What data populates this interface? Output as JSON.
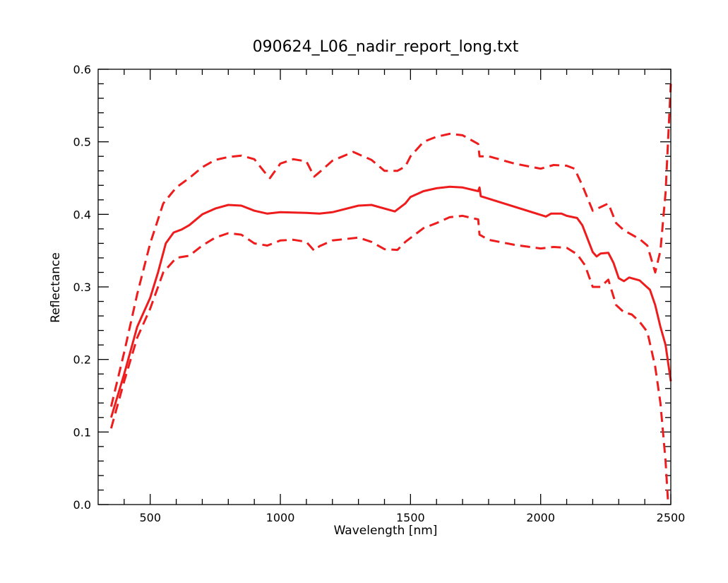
{
  "chart_data": {
    "type": "line",
    "title": "090624_L06_nadir_report_long.txt",
    "xlabel": "Wavelength [nm]",
    "ylabel": "Reflectance",
    "xlim": [
      300,
      2500
    ],
    "ylim": [
      0.0,
      0.6
    ],
    "xticks": [
      500,
      1000,
      1500,
      2000,
      2500
    ],
    "xtick_labels": [
      "500",
      "1000",
      "1500",
      "2000",
      "2500"
    ],
    "yticks": [
      0.0,
      0.1,
      0.2,
      0.3,
      0.4,
      0.5,
      0.6
    ],
    "ytick_labels": [
      "0.0",
      "0.1",
      "0.2",
      "0.3",
      "0.4",
      "0.5",
      "0.6"
    ],
    "grid": false,
    "series": [
      {
        "style": "solid",
        "color": "#ee1c1c",
        "points": [
          [
            350,
            0.12
          ],
          [
            400,
            0.18
          ],
          [
            450,
            0.245
          ],
          [
            500,
            0.285
          ],
          [
            530,
            0.32
          ],
          [
            560,
            0.36
          ],
          [
            590,
            0.375
          ],
          [
            620,
            0.379
          ],
          [
            650,
            0.385
          ],
          [
            700,
            0.4
          ],
          [
            750,
            0.408
          ],
          [
            800,
            0.413
          ],
          [
            850,
            0.412
          ],
          [
            900,
            0.405
          ],
          [
            950,
            0.401
          ],
          [
            1000,
            0.403
          ],
          [
            1100,
            0.402
          ],
          [
            1150,
            0.401
          ],
          [
            1200,
            0.403
          ],
          [
            1300,
            0.412
          ],
          [
            1350,
            0.413
          ],
          [
            1440,
            0.404
          ],
          [
            1480,
            0.415
          ],
          [
            1500,
            0.424
          ],
          [
            1550,
            0.432
          ],
          [
            1600,
            0.436
          ],
          [
            1650,
            0.438
          ],
          [
            1700,
            0.437
          ],
          [
            1760,
            0.432
          ],
          [
            1765,
            0.437
          ],
          [
            1770,
            0.425
          ],
          [
            2020,
            0.397
          ],
          [
            2040,
            0.401
          ],
          [
            2080,
            0.401
          ],
          [
            2100,
            0.398
          ],
          [
            2140,
            0.395
          ],
          [
            2160,
            0.385
          ],
          [
            2200,
            0.348
          ],
          [
            2215,
            0.342
          ],
          [
            2230,
            0.346
          ],
          [
            2260,
            0.347
          ],
          [
            2280,
            0.333
          ],
          [
            2300,
            0.312
          ],
          [
            2320,
            0.308
          ],
          [
            2340,
            0.313
          ],
          [
            2380,
            0.309
          ],
          [
            2420,
            0.296
          ],
          [
            2440,
            0.275
          ],
          [
            2460,
            0.245
          ],
          [
            2480,
            0.22
          ],
          [
            2500,
            0.17
          ]
        ]
      },
      {
        "style": "dashed",
        "color": "#ee1c1c",
        "points": [
          [
            350,
            0.135
          ],
          [
            400,
            0.21
          ],
          [
            450,
            0.29
          ],
          [
            500,
            0.36
          ],
          [
            550,
            0.415
          ],
          [
            600,
            0.437
          ],
          [
            650,
            0.45
          ],
          [
            700,
            0.465
          ],
          [
            750,
            0.475
          ],
          [
            800,
            0.479
          ],
          [
            850,
            0.481
          ],
          [
            900,
            0.476
          ],
          [
            940,
            0.458
          ],
          [
            960,
            0.45
          ],
          [
            1000,
            0.47
          ],
          [
            1050,
            0.476
          ],
          [
            1100,
            0.473
          ],
          [
            1130,
            0.452
          ],
          [
            1150,
            0.458
          ],
          [
            1200,
            0.474
          ],
          [
            1280,
            0.486
          ],
          [
            1350,
            0.475
          ],
          [
            1400,
            0.46
          ],
          [
            1450,
            0.46
          ],
          [
            1480,
            0.466
          ],
          [
            1500,
            0.48
          ],
          [
            1550,
            0.5
          ],
          [
            1600,
            0.507
          ],
          [
            1650,
            0.511
          ],
          [
            1700,
            0.509
          ],
          [
            1760,
            0.497
          ],
          [
            1765,
            0.48
          ],
          [
            1800,
            0.48
          ],
          [
            1900,
            0.47
          ],
          [
            2000,
            0.463
          ],
          [
            2050,
            0.468
          ],
          [
            2100,
            0.467
          ],
          [
            2130,
            0.463
          ],
          [
            2160,
            0.44
          ],
          [
            2200,
            0.405
          ],
          [
            2230,
            0.41
          ],
          [
            2260,
            0.415
          ],
          [
            2290,
            0.388
          ],
          [
            2320,
            0.378
          ],
          [
            2350,
            0.372
          ],
          [
            2380,
            0.366
          ],
          [
            2410,
            0.357
          ],
          [
            2440,
            0.32
          ],
          [
            2460,
            0.35
          ],
          [
            2480,
            0.43
          ],
          [
            2500,
            0.58
          ]
        ]
      },
      {
        "style": "dashed",
        "color": "#ee1c1c",
        "points": [
          [
            350,
            0.105
          ],
          [
            400,
            0.17
          ],
          [
            450,
            0.23
          ],
          [
            500,
            0.27
          ],
          [
            550,
            0.32
          ],
          [
            600,
            0.34
          ],
          [
            650,
            0.343
          ],
          [
            700,
            0.357
          ],
          [
            750,
            0.368
          ],
          [
            800,
            0.374
          ],
          [
            850,
            0.372
          ],
          [
            900,
            0.36
          ],
          [
            950,
            0.357
          ],
          [
            1000,
            0.364
          ],
          [
            1050,
            0.365
          ],
          [
            1100,
            0.362
          ],
          [
            1130,
            0.35
          ],
          [
            1150,
            0.356
          ],
          [
            1200,
            0.364
          ],
          [
            1300,
            0.368
          ],
          [
            1350,
            0.362
          ],
          [
            1400,
            0.352
          ],
          [
            1450,
            0.351
          ],
          [
            1480,
            0.362
          ],
          [
            1550,
            0.381
          ],
          [
            1600,
            0.388
          ],
          [
            1650,
            0.396
          ],
          [
            1700,
            0.398
          ],
          [
            1760,
            0.393
          ],
          [
            1765,
            0.372
          ],
          [
            1800,
            0.365
          ],
          [
            1900,
            0.358
          ],
          [
            2000,
            0.353
          ],
          [
            2050,
            0.355
          ],
          [
            2100,
            0.354
          ],
          [
            2140,
            0.345
          ],
          [
            2170,
            0.33
          ],
          [
            2200,
            0.3
          ],
          [
            2230,
            0.3
          ],
          [
            2260,
            0.31
          ],
          [
            2290,
            0.275
          ],
          [
            2320,
            0.265
          ],
          [
            2350,
            0.262
          ],
          [
            2380,
            0.252
          ],
          [
            2410,
            0.238
          ],
          [
            2440,
            0.19
          ],
          [
            2460,
            0.14
          ],
          [
            2480,
            0.06
          ],
          [
            2490,
            0.0
          ]
        ]
      }
    ]
  }
}
